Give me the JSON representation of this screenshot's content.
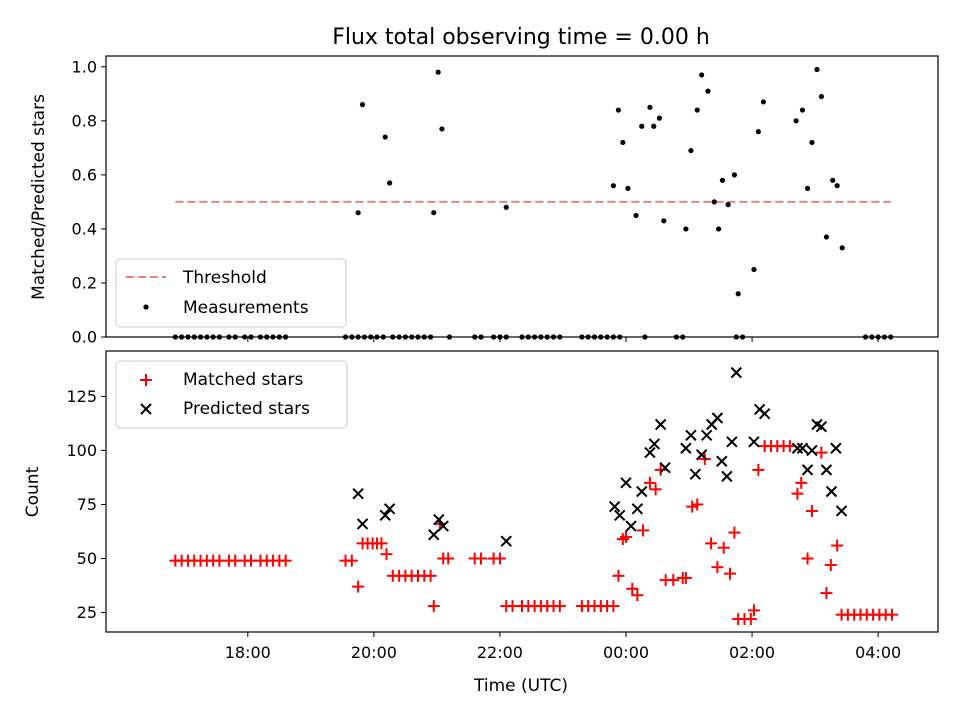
{
  "chart_data": [
    {
      "type": "scatter",
      "title": "Flux total observing time = 0.00 h",
      "xlabel": "",
      "ylabel": "Matched/Predicted stars",
      "ylim": [
        0,
        1.04
      ],
      "yticks": [
        "0.0",
        "0.2",
        "0.4",
        "0.6",
        "0.8",
        "1.0"
      ],
      "x_axis_unit": "hours since 16:00 UTC",
      "threshold": {
        "name": "Threshold",
        "value": 0.5,
        "x_range": [
          0.85,
          12.2
        ],
        "color": "#f08080"
      },
      "series": [
        {
          "name": "Measurements",
          "color": "#000000",
          "points": [
            [
              0.85,
              0
            ],
            [
              0.95,
              0
            ],
            [
              1.05,
              0
            ],
            [
              1.15,
              0
            ],
            [
              1.25,
              0
            ],
            [
              1.35,
              0
            ],
            [
              1.45,
              0
            ],
            [
              1.55,
              0
            ],
            [
              1.7,
              0
            ],
            [
              1.8,
              0
            ],
            [
              1.95,
              0
            ],
            [
              2.05,
              0
            ],
            [
              2.2,
              0
            ],
            [
              2.3,
              0
            ],
            [
              2.4,
              0
            ],
            [
              2.5,
              0
            ],
            [
              2.6,
              0
            ],
            [
              3.55,
              0
            ],
            [
              3.65,
              0
            ],
            [
              3.75,
              0
            ],
            [
              3.85,
              0
            ],
            [
              3.95,
              0
            ],
            [
              4.05,
              0
            ],
            [
              4.15,
              0
            ],
            [
              4.3,
              0
            ],
            [
              4.4,
              0
            ],
            [
              4.5,
              0
            ],
            [
              4.6,
              0
            ],
            [
              4.7,
              0
            ],
            [
              4.8,
              0
            ],
            [
              4.9,
              0
            ],
            [
              5.2,
              0
            ],
            [
              5.6,
              0
            ],
            [
              5.7,
              0
            ],
            [
              5.9,
              0
            ],
            [
              6.0,
              0
            ],
            [
              6.1,
              0
            ],
            [
              6.35,
              0
            ],
            [
              6.45,
              0
            ],
            [
              6.55,
              0
            ],
            [
              6.65,
              0
            ],
            [
              6.75,
              0
            ],
            [
              6.85,
              0
            ],
            [
              6.95,
              0
            ],
            [
              7.3,
              0
            ],
            [
              7.4,
              0
            ],
            [
              7.5,
              0
            ],
            [
              7.6,
              0
            ],
            [
              7.7,
              0
            ],
            [
              7.8,
              0
            ],
            [
              7.9,
              0
            ],
            [
              8.3,
              0
            ],
            [
              8.8,
              0
            ],
            [
              8.9,
              0
            ],
            [
              9.75,
              0
            ],
            [
              9.85,
              0
            ],
            [
              11.8,
              0
            ],
            [
              11.9,
              0
            ],
            [
              12.0,
              0
            ],
            [
              12.1,
              0
            ],
            [
              12.2,
              0
            ],
            [
              3.75,
              0.46
            ],
            [
              3.82,
              0.86
            ],
            [
              4.18,
              0.74
            ],
            [
              4.25,
              0.57
            ],
            [
              4.95,
              0.46
            ],
            [
              5.02,
              0.98
            ],
            [
              5.08,
              0.77
            ],
            [
              6.1,
              0.48
            ],
            [
              7.8,
              0.56
            ],
            [
              7.88,
              0.84
            ],
            [
              7.95,
              0.72
            ],
            [
              8.03,
              0.55
            ],
            [
              8.16,
              0.45
            ],
            [
              8.25,
              0.78
            ],
            [
              8.38,
              0.85
            ],
            [
              8.44,
              0.78
            ],
            [
              8.53,
              0.81
            ],
            [
              8.6,
              0.43
            ],
            [
              8.95,
              0.4
            ],
            [
              9.03,
              0.69
            ],
            [
              9.13,
              0.84
            ],
            [
              9.2,
              0.97
            ],
            [
              9.3,
              0.91
            ],
            [
              9.4,
              0.5
            ],
            [
              9.47,
              0.4
            ],
            [
              9.53,
              0.58
            ],
            [
              9.62,
              0.49
            ],
            [
              9.72,
              0.6
            ],
            [
              9.78,
              0.16
            ],
            [
              10.03,
              0.25
            ],
            [
              10.1,
              0.76
            ],
            [
              10.18,
              0.87
            ],
            [
              10.7,
              0.8
            ],
            [
              10.8,
              0.84
            ],
            [
              10.88,
              0.55
            ],
            [
              10.95,
              0.72
            ],
            [
              11.03,
              0.99
            ],
            [
              11.1,
              0.89
            ],
            [
              11.18,
              0.37
            ],
            [
              11.28,
              0.58
            ],
            [
              11.35,
              0.56
            ],
            [
              11.43,
              0.33
            ]
          ]
        }
      ],
      "legend": {
        "position": "lower-left",
        "entries": [
          "Threshold",
          "Measurements"
        ]
      }
    },
    {
      "type": "scatter",
      "title": "",
      "xlabel": "Time (UTC)",
      "ylabel": "Count",
      "ylim": [
        16,
        146
      ],
      "yticks": [
        "25",
        "50",
        "75",
        "100",
        "125"
      ],
      "xticks": [
        "18:00",
        "20:00",
        "22:00",
        "00:00",
        "02:00",
        "04:00"
      ],
      "x_axis_unit": "hours since 16:00 UTC",
      "xlim": [
        -0.25,
        12.95
      ],
      "series": [
        {
          "name": "Matched stars",
          "color": "#ff0000",
          "marker": "plus",
          "points": [
            [
              0.85,
              49
            ],
            [
              0.95,
              49
            ],
            [
              1.05,
              49
            ],
            [
              1.15,
              49
            ],
            [
              1.25,
              49
            ],
            [
              1.35,
              49
            ],
            [
              1.45,
              49
            ],
            [
              1.55,
              49
            ],
            [
              1.7,
              49
            ],
            [
              1.8,
              49
            ],
            [
              1.95,
              49
            ],
            [
              2.05,
              49
            ],
            [
              2.2,
              49
            ],
            [
              2.3,
              49
            ],
            [
              2.4,
              49
            ],
            [
              2.5,
              49
            ],
            [
              2.6,
              49
            ],
            [
              3.55,
              49
            ],
            [
              3.65,
              49
            ],
            [
              3.75,
              37
            ],
            [
              3.82,
              57
            ],
            [
              3.9,
              57
            ],
            [
              3.98,
              57
            ],
            [
              4.05,
              57
            ],
            [
              4.12,
              57
            ],
            [
              4.2,
              52
            ],
            [
              4.3,
              42
            ],
            [
              4.4,
              42
            ],
            [
              4.5,
              42
            ],
            [
              4.6,
              42
            ],
            [
              4.7,
              42
            ],
            [
              4.8,
              42
            ],
            [
              4.9,
              42
            ],
            [
              4.95,
              28
            ],
            [
              5.05,
              66
            ],
            [
              5.1,
              50
            ],
            [
              5.18,
              50
            ],
            [
              5.6,
              50
            ],
            [
              5.7,
              50
            ],
            [
              5.9,
              50
            ],
            [
              6.0,
              50
            ],
            [
              6.1,
              28
            ],
            [
              6.2,
              28
            ],
            [
              6.35,
              28
            ],
            [
              6.45,
              28
            ],
            [
              6.55,
              28
            ],
            [
              6.65,
              28
            ],
            [
              6.75,
              28
            ],
            [
              6.85,
              28
            ],
            [
              6.95,
              28
            ],
            [
              7.3,
              28
            ],
            [
              7.4,
              28
            ],
            [
              7.5,
              28
            ],
            [
              7.6,
              28
            ],
            [
              7.7,
              28
            ],
            [
              7.8,
              28
            ],
            [
              7.88,
              42
            ],
            [
              7.95,
              59
            ],
            [
              8.0,
              60
            ],
            [
              8.1,
              36
            ],
            [
              8.18,
              33
            ],
            [
              8.27,
              63
            ],
            [
              8.38,
              85
            ],
            [
              8.47,
              82
            ],
            [
              8.55,
              91
            ],
            [
              8.63,
              40
            ],
            [
              8.75,
              40
            ],
            [
              8.9,
              41
            ],
            [
              8.95,
              41
            ],
            [
              9.05,
              74
            ],
            [
              9.13,
              75
            ],
            [
              9.25,
              96
            ],
            [
              9.35,
              57
            ],
            [
              9.45,
              46
            ],
            [
              9.55,
              55
            ],
            [
              9.65,
              43
            ],
            [
              9.72,
              62
            ],
            [
              9.78,
              22
            ],
            [
              9.88,
              22
            ],
            [
              9.98,
              22
            ],
            [
              10.03,
              26
            ],
            [
              10.1,
              91
            ],
            [
              10.2,
              102
            ],
            [
              10.3,
              102
            ],
            [
              10.4,
              102
            ],
            [
              10.5,
              102
            ],
            [
              10.6,
              102
            ],
            [
              10.72,
              80
            ],
            [
              10.78,
              85
            ],
            [
              10.88,
              50
            ],
            [
              10.95,
              72
            ],
            [
              11.1,
              99
            ],
            [
              11.18,
              34
            ],
            [
              11.25,
              47
            ],
            [
              11.35,
              56
            ],
            [
              11.42,
              24
            ],
            [
              11.52,
              24
            ],
            [
              11.62,
              24
            ],
            [
              11.72,
              24
            ],
            [
              11.82,
              24
            ],
            [
              11.92,
              24
            ],
            [
              12.02,
              24
            ],
            [
              12.12,
              24
            ],
            [
              12.22,
              24
            ]
          ]
        },
        {
          "name": "Predicted stars",
          "color": "#000000",
          "marker": "x",
          "points": [
            [
              3.75,
              80
            ],
            [
              3.82,
              66
            ],
            [
              4.18,
              70
            ],
            [
              4.25,
              73
            ],
            [
              4.95,
              61
            ],
            [
              5.03,
              68
            ],
            [
              5.1,
              65
            ],
            [
              6.1,
              58
            ],
            [
              7.82,
              74
            ],
            [
              7.9,
              70
            ],
            [
              8.0,
              85
            ],
            [
              8.08,
              65
            ],
            [
              8.18,
              73
            ],
            [
              8.25,
              81
            ],
            [
              8.38,
              99
            ],
            [
              8.45,
              103
            ],
            [
              8.55,
              112
            ],
            [
              8.62,
              92
            ],
            [
              8.95,
              101
            ],
            [
              9.03,
              107
            ],
            [
              9.1,
              89
            ],
            [
              9.2,
              98
            ],
            [
              9.28,
              107
            ],
            [
              9.36,
              112
            ],
            [
              9.45,
              115
            ],
            [
              9.52,
              95
            ],
            [
              9.6,
              88
            ],
            [
              9.68,
              104
            ],
            [
              9.75,
              136
            ],
            [
              10.03,
              104
            ],
            [
              10.12,
              119
            ],
            [
              10.2,
              117
            ],
            [
              10.72,
              101
            ],
            [
              10.8,
              101
            ],
            [
              10.88,
              91
            ],
            [
              10.95,
              100
            ],
            [
              11.03,
              112
            ],
            [
              11.1,
              111
            ],
            [
              11.18,
              91
            ],
            [
              11.26,
              81
            ],
            [
              11.33,
              101
            ],
            [
              11.42,
              72
            ]
          ]
        }
      ],
      "legend": {
        "position": "top-left",
        "entries": [
          "Matched stars",
          "Predicted stars"
        ]
      }
    }
  ]
}
